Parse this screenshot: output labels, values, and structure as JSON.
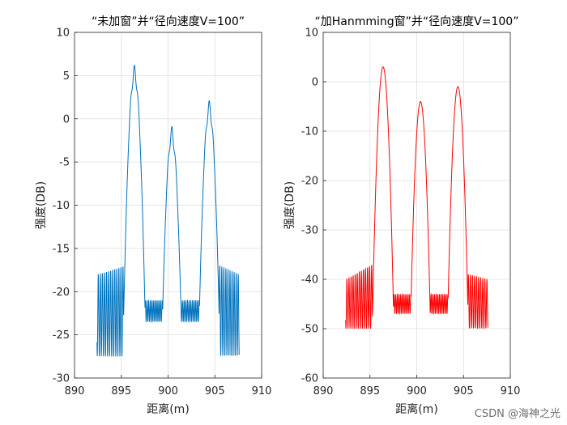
{
  "watermark": "CSDN @海神之光",
  "chart_data": [
    {
      "type": "line",
      "title": "“未加窗”并“径向速度V=100”",
      "xlabel": "距离(m)",
      "ylabel": "强度(DB)",
      "xlim": [
        890,
        910
      ],
      "ylim": [
        -30,
        10
      ],
      "xticks": [
        890,
        895,
        900,
        905,
        910
      ],
      "yticks": [
        -30,
        -25,
        -20,
        -15,
        -10,
        -5,
        0,
        5,
        10
      ],
      "grid": true,
      "line_color": "#0072BD",
      "series": [
        {
          "name": "未加窗",
          "x_range": [
            892.4,
            907.6
          ],
          "peaks": [
            {
              "center": 896.4,
              "value": 5.3
            },
            {
              "center": 900.4,
              "value": -1.8
            },
            {
              "center": 904.4,
              "value": 1.2
            }
          ],
          "sidelobe_envelope": {
            "left_start": -18,
            "left_end": -17,
            "right_start": -17,
            "right_end": -18
          },
          "floor_range": [
            -27.5,
            -17
          ]
        }
      ]
    },
    {
      "type": "line",
      "title": "“加Hanmming窗”并“径向速度V=100”",
      "xlabel": "距离(m)",
      "ylabel": "强度(DB)",
      "xlim": [
        890,
        910
      ],
      "ylim": [
        -60,
        10
      ],
      "xticks": [
        890,
        895,
        900,
        905,
        910
      ],
      "yticks": [
        -60,
        -50,
        -40,
        -30,
        -20,
        -10,
        0,
        10
      ],
      "grid": true,
      "line_color": "#FF0000",
      "series": [
        {
          "name": "加Hanmming窗",
          "x_range": [
            892.4,
            907.6
          ],
          "peaks": [
            {
              "center": 896.4,
              "value": 3.0
            },
            {
              "center": 900.4,
              "value": -4.0
            },
            {
              "center": 904.4,
              "value": -1.0
            }
          ],
          "sidelobe_envelope": {
            "left_start": -40,
            "left_end": -37,
            "right_start": -39,
            "right_end": -40
          },
          "floor_range": [
            -50,
            -40
          ]
        }
      ]
    }
  ]
}
